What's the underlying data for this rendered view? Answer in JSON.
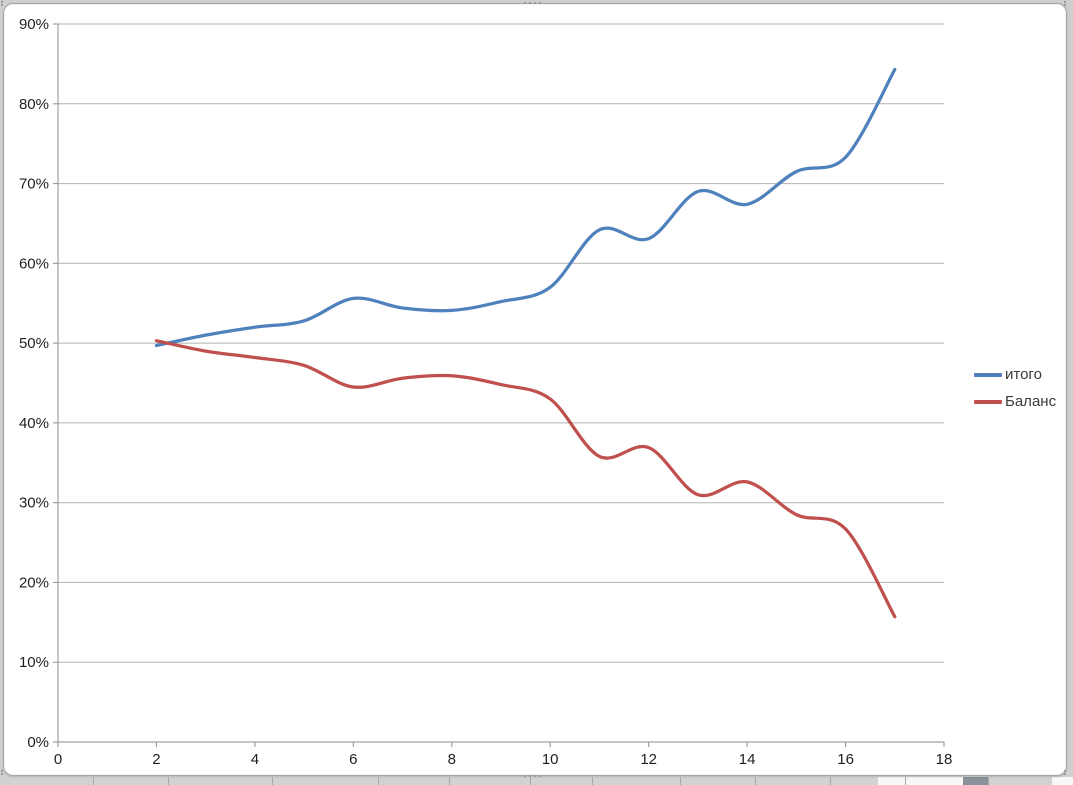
{
  "chart_data": {
    "type": "line",
    "title": "",
    "smooth": true,
    "grid": "horizontal-only",
    "legend_position": "right",
    "x": [
      2,
      3,
      4,
      5,
      6,
      7,
      8,
      9,
      10,
      11,
      12,
      13,
      14,
      15,
      16,
      17
    ],
    "series": [
      {
        "name": "итого",
        "color": "#4F81BD",
        "values": [
          49.7,
          51.0,
          52.0,
          52.8,
          55.6,
          54.4,
          54.1,
          55.2,
          57.0,
          64.2,
          63.1,
          69.0,
          67.4,
          71.5,
          73.3,
          84.3
        ]
      },
      {
        "name": "Баланс",
        "color": "#C0504D",
        "values": [
          50.3,
          49.0,
          48.2,
          47.2,
          44.5,
          45.6,
          45.9,
          44.8,
          43.0,
          35.8,
          36.9,
          31.0,
          32.6,
          28.5,
          26.7,
          15.7
        ]
      }
    ],
    "xlim": [
      0,
      18
    ],
    "ylim": [
      0,
      90
    ],
    "x_ticks": [
      0,
      2,
      4,
      6,
      8,
      10,
      12,
      14,
      16,
      18
    ],
    "y_tick_values": [
      0,
      10,
      20,
      30,
      40,
      50,
      60,
      70,
      80,
      90
    ],
    "y_tick_labels": [
      "0%",
      "10%",
      "20%",
      "30%",
      "40%",
      "50%",
      "60%",
      "70%",
      "80%",
      "90%"
    ],
    "gridline_color": "#b2b2b2",
    "axis_color": "#8e8e8e",
    "tick_label_color": "#1f1f1f",
    "line_width": 3.25
  }
}
